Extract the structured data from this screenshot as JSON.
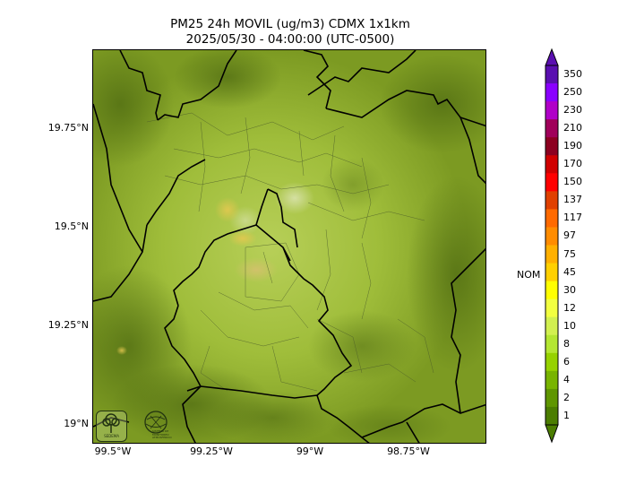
{
  "title": {
    "line1": "PM25 24h MOVIL (ug/m3) CDMX 1x1km",
    "line2": "2025/05/30 - 04:00:00 (UTC-0500)"
  },
  "axes": {
    "lat_ticks": [
      "19.75°N",
      "19.5°N",
      "19.25°N",
      "19°N"
    ],
    "lon_ticks": [
      "99.5°W",
      "99.25°W",
      "99°W",
      "98.75°W"
    ]
  },
  "colorbar": {
    "nom_label": "NOM",
    "levels": [
      "350",
      "250",
      "230",
      "210",
      "190",
      "170",
      "150",
      "137",
      "117",
      "97",
      "75",
      "45",
      "30",
      "12",
      "10",
      "8",
      "6",
      "4",
      "2",
      "1"
    ],
    "colors": [
      "#5a0fb0",
      "#8a00ff",
      "#b000c8",
      "#a0005a",
      "#8c0020",
      "#d00000",
      "#ff0000",
      "#e04000",
      "#ff6a00",
      "#ff8c00",
      "#ffb000",
      "#ffd000",
      "#ffff00",
      "#f2ff40",
      "#d2f050",
      "#b4e632",
      "#96d200",
      "#78b400",
      "#5f9600",
      "#4b7d00"
    ]
  },
  "logos": {
    "left": "SEDEMA",
    "right": "SISTEMA DE MONITOREO ATMOSFERICO"
  }
}
